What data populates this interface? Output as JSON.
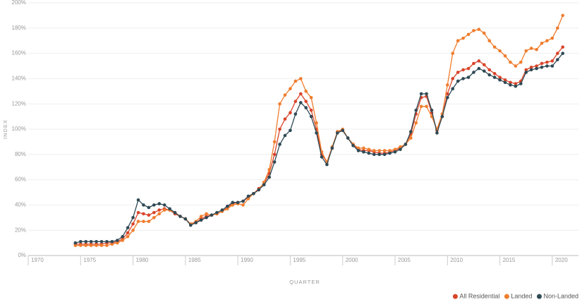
{
  "chart_data": {
    "type": "line",
    "x_label": "QUARTER",
    "y_label": "INDEX",
    "x": [
      1974.5,
      1975,
      1975.5,
      1976,
      1976.5,
      1977,
      1977.5,
      1978,
      1978.5,
      1979,
      1979.5,
      1980,
      1980.5,
      1981,
      1981.5,
      1982,
      1982.5,
      1983,
      1983.5,
      1984,
      1984.5,
      1985,
      1985.5,
      1986,
      1986.5,
      1987,
      1987.5,
      1988,
      1988.5,
      1989,
      1989.5,
      1990,
      1990.5,
      1991,
      1991.5,
      1992,
      1992.5,
      1993,
      1993.5,
      1994,
      1994.5,
      1995,
      1995.5,
      1996,
      1996.5,
      1997,
      1997.5,
      1998,
      1998.5,
      1999,
      1999.5,
      2000,
      2000.5,
      2001,
      2001.5,
      2002,
      2002.5,
      2003,
      2003.5,
      2004,
      2004.5,
      2005,
      2005.5,
      2006,
      2006.5,
      2007,
      2007.5,
      2008,
      2008.5,
      2009,
      2009.5,
      2010,
      2010.5,
      2011,
      2011.5,
      2012,
      2012.5,
      2013,
      2013.5,
      2014,
      2014.5,
      2015,
      2015.5,
      2016,
      2016.5,
      2017,
      2017.5,
      2018,
      2018.5,
      2019,
      2019.5,
      2020,
      2020.5,
      2021
    ],
    "series": [
      {
        "name": "All Residential",
        "color": "#d9452a",
        "values": [
          9,
          9,
          9,
          9,
          9,
          9,
          10,
          10,
          11,
          13,
          18,
          25,
          34,
          33,
          32,
          34,
          36,
          37,
          36,
          33,
          31,
          29,
          25,
          26,
          29,
          31,
          32,
          33,
          35,
          38,
          41,
          42,
          43,
          46,
          49,
          53,
          57,
          65,
          80,
          100,
          108,
          113,
          122,
          128,
          122,
          115,
          100,
          80,
          74,
          85,
          98,
          99,
          93,
          88,
          84,
          83,
          83,
          82,
          81,
          81,
          82,
          83,
          85,
          88,
          96,
          112,
          125,
          126,
          113,
          99,
          110,
          128,
          140,
          145,
          147,
          148,
          152,
          154,
          151,
          147,
          144,
          141,
          139,
          137,
          136,
          138,
          147,
          149,
          150,
          152,
          153,
          154,
          160,
          165
        ]
      },
      {
        "name": "Landed",
        "color": "#f07d2e",
        "values": [
          8,
          8,
          8,
          8,
          8,
          8,
          8,
          9,
          10,
          12,
          15,
          20,
          27,
          27,
          27,
          30,
          33,
          36,
          36,
          34,
          31,
          29,
          25,
          27,
          31,
          33,
          32,
          33,
          35,
          37,
          40,
          41,
          40,
          45,
          49,
          52,
          58,
          68,
          90,
          120,
          127,
          132,
          138,
          140,
          130,
          125,
          105,
          82,
          74,
          86,
          98,
          100,
          93,
          88,
          85,
          85,
          84,
          83,
          83,
          83,
          83,
          84,
          86,
          88,
          93,
          105,
          118,
          118,
          110,
          100,
          112,
          135,
          160,
          170,
          172,
          175,
          178,
          179,
          176,
          170,
          165,
          162,
          158,
          153,
          150,
          153,
          162,
          164,
          163,
          168,
          170,
          172,
          180,
          190
        ]
      },
      {
        "name": "Non-Landed",
        "color": "#2f4a55",
        "values": [
          10,
          11,
          11,
          11,
          11,
          11,
          11,
          11,
          12,
          15,
          22,
          30,
          44,
          40,
          38,
          40,
          41,
          40,
          37,
          34,
          31,
          29,
          24,
          26,
          28,
          30,
          32,
          34,
          36,
          39,
          42,
          42,
          43,
          47,
          49,
          52,
          56,
          62,
          74,
          88,
          95,
          99,
          112,
          121,
          117,
          110,
          97,
          78,
          72,
          85,
          97,
          99,
          93,
          87,
          83,
          82,
          81,
          80,
          80,
          80,
          81,
          82,
          84,
          88,
          98,
          115,
          128,
          128,
          115,
          97,
          110,
          125,
          132,
          138,
          140,
          141,
          145,
          148,
          146,
          143,
          141,
          139,
          137,
          135,
          134,
          136,
          145,
          147,
          148,
          149,
          150,
          150,
          155,
          160
        ]
      }
    ],
    "xlim": [
      1970,
      2022.5
    ],
    "xticks": [
      1970,
      1975,
      1980,
      1985,
      1990,
      1995,
      2000,
      2005,
      2010,
      2015,
      2020
    ],
    "ylim": [
      0,
      200
    ],
    "yticks": [
      {
        "value": 0,
        "label": "0%"
      },
      {
        "value": 20,
        "label": "20%"
      },
      {
        "value": 40,
        "label": "40%"
      },
      {
        "value": 60,
        "label": "60%"
      },
      {
        "value": 80,
        "label": "80%"
      },
      {
        "value": 100,
        "label": "100%"
      },
      {
        "value": 120,
        "label": "120%"
      },
      {
        "value": 140,
        "label": "140%"
      },
      {
        "value": 160,
        "label": "160%"
      },
      {
        "value": 180,
        "label": "180%"
      },
      {
        "value": 200,
        "label": "200%"
      }
    ],
    "grid": true,
    "legend": "bottom-right"
  }
}
